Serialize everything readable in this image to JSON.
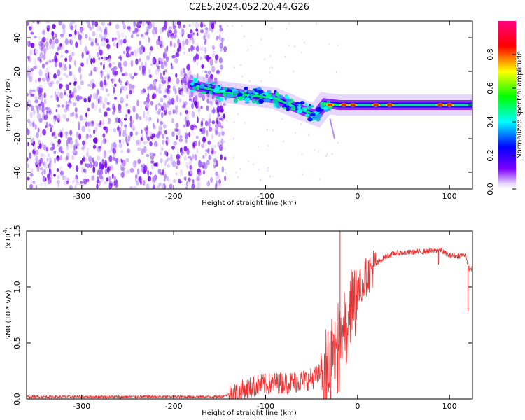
{
  "title": "C2E5.2024.052.20.44.G26",
  "chart_data": [
    {
      "type": "heatmap",
      "xlabel": "Height of straight line (km)",
      "ylabel": "Frequency (Hz)",
      "xlim": [
        -360,
        125
      ],
      "ylim": [
        -50,
        50
      ],
      "x_ticks": [
        "-300",
        "-200",
        "-100",
        "0",
        "100"
      ],
      "y_ticks": [
        "-40",
        "-20",
        "0",
        "20",
        "40"
      ],
      "noise_region_x": [
        -360,
        -150
      ],
      "signal_trace": [
        {
          "x": -180,
          "f": 12
        },
        {
          "x": -150,
          "f": 8
        },
        {
          "x": -120,
          "f": 6
        },
        {
          "x": -90,
          "f": 4
        },
        {
          "x": -60,
          "f": -3
        },
        {
          "x": -45,
          "f": -6
        },
        {
          "x": -35,
          "f": 1
        },
        {
          "x": -20,
          "f": 0
        },
        {
          "x": 0,
          "f": 0
        },
        {
          "x": 50,
          "f": 0
        },
        {
          "x": 100,
          "f": 0
        },
        {
          "x": 125,
          "f": 0
        }
      ],
      "colorbar": {
        "label": "Normalized spectral amplitude",
        "range": [
          0,
          1
        ],
        "ticks": [
          "0.0",
          "0.2",
          "0.4",
          "0.6",
          "0.8"
        ],
        "colors": [
          "#ffffff",
          "#7c00ff",
          "#0000ff",
          "#00ffff",
          "#00ff00",
          "#ffff00",
          "#ff0000",
          "#ff0080"
        ]
      },
      "grid": false
    },
    {
      "type": "line",
      "xlabel": "Height of straight line (km)",
      "ylabel": "SNR (10 * v/v)",
      "exponent_label": "(x10",
      "exponent_power": "4",
      "exponent_close": ")",
      "xlim": [
        -360,
        125
      ],
      "ylim": [
        0,
        1.5
      ],
      "x_ticks": [
        "-300",
        "-200",
        "-100",
        "0",
        "100"
      ],
      "y_ticks": [
        "0.0",
        "0.5",
        "1.0",
        "1.5"
      ],
      "series": [
        {
          "color": "#ee3333",
          "x": [
            -360,
            -300,
            -200,
            -150,
            -130,
            -110,
            -90,
            -70,
            -50,
            -40,
            -30,
            -25,
            -20,
            -15,
            -10,
            -5,
            0,
            10,
            20,
            30,
            40,
            60,
            80,
            90,
            100,
            110,
            118,
            120,
            125
          ],
          "y": [
            0.02,
            0.02,
            0.02,
            0.02,
            0.06,
            0.12,
            0.14,
            0.15,
            0.18,
            0.22,
            0.35,
            0.55,
            0.6,
            0.7,
            0.8,
            0.85,
            0.95,
            1.1,
            1.2,
            1.27,
            1.3,
            1.31,
            1.32,
            1.33,
            1.28,
            1.28,
            1.29,
            1.17,
            1.16
          ]
        }
      ],
      "grid": false
    }
  ]
}
